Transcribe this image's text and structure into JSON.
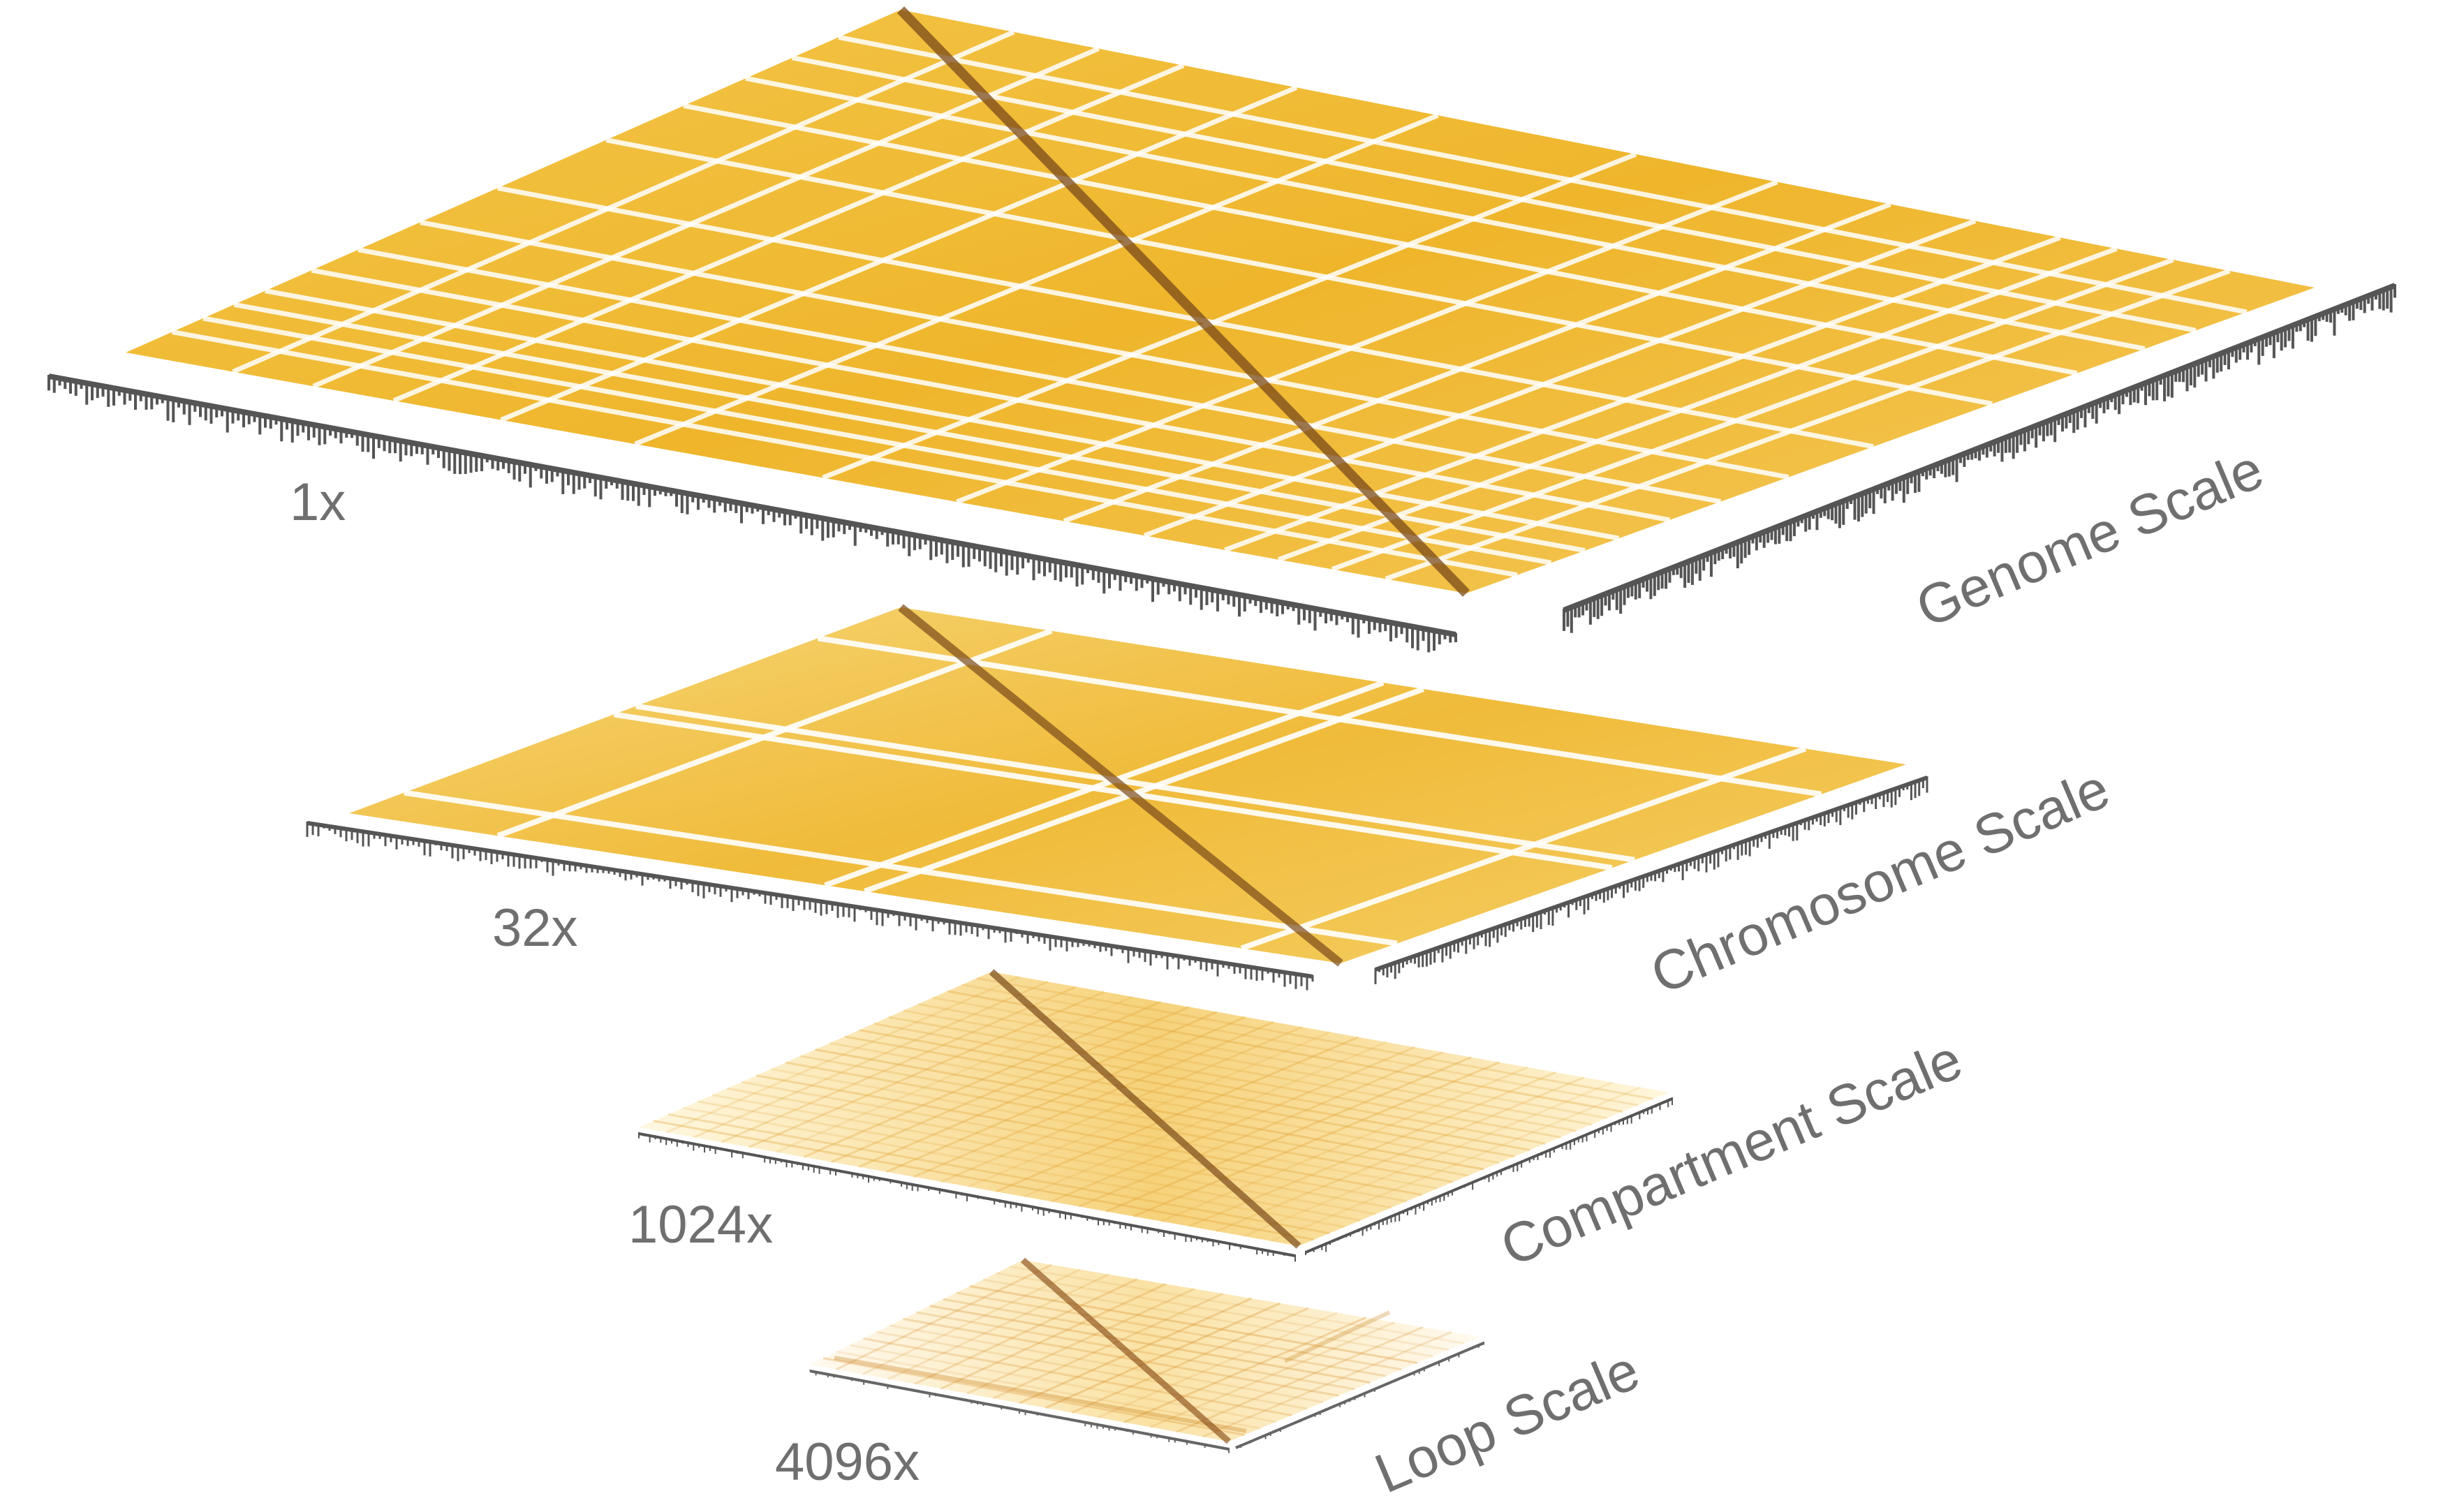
{
  "figure": {
    "layers": [
      {
        "id": "genome",
        "zoom_label": "1x",
        "scale_label": "Genome Scale",
        "color_level": 0.95
      },
      {
        "id": "chromosome",
        "zoom_label": "32x",
        "scale_label": "Chromosome Scale",
        "color_level": 0.85
      },
      {
        "id": "compartment",
        "zoom_label": "1024x",
        "scale_label": "Compartment Scale",
        "color_level": 0.45
      },
      {
        "id": "loop",
        "zoom_label": "4096x",
        "scale_label": "Loop Scale",
        "color_level": 0.25
      }
    ],
    "colors": {
      "heatmap_high": "#e9a91c",
      "heatmap_low": "#fbe7a6",
      "heatmap_faint": "#fff7de",
      "diagonal": "#7a4a1a",
      "track": "#555555",
      "label": "#6f6f6f"
    }
  }
}
